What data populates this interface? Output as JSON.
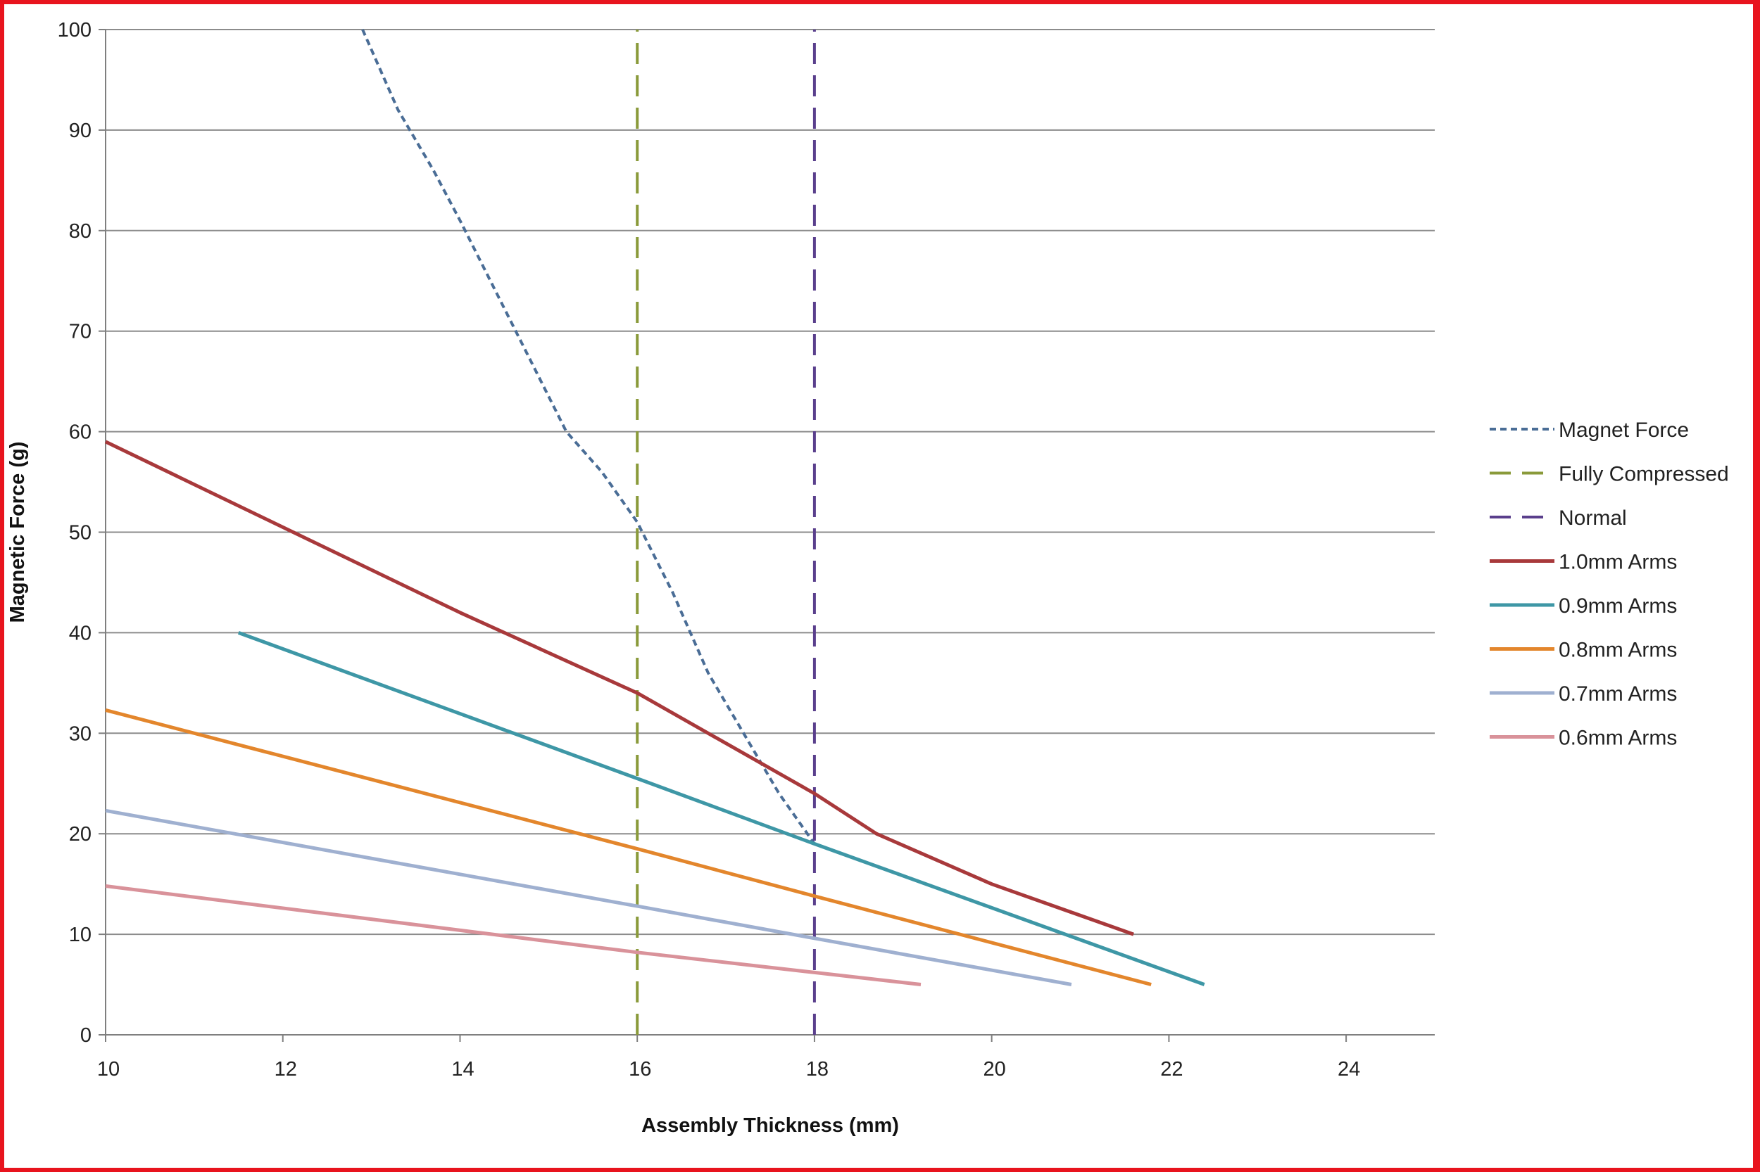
{
  "chart_data": {
    "type": "line",
    "title": "",
    "xlabel": "Assembly Thickness (mm)",
    "ylabel": "Magnetic Force (g)",
    "xlim": [
      10,
      25
    ],
    "ylim": [
      0,
      100
    ],
    "x_ticks": [
      10,
      12,
      14,
      16,
      18,
      20,
      22,
      24
    ],
    "y_ticks": [
      0,
      10,
      20,
      30,
      40,
      50,
      60,
      70,
      80,
      90,
      100
    ],
    "grid": "horizontal",
    "legend_position": "right",
    "series": [
      {
        "name": "Magnet Force",
        "color": "#4a6d96",
        "dash": "dotted",
        "points": [
          [
            12.9,
            100
          ],
          [
            13.3,
            92
          ],
          [
            13.7,
            86
          ],
          [
            14.0,
            81
          ],
          [
            14.4,
            74
          ],
          [
            14.8,
            67
          ],
          [
            15.2,
            60
          ],
          [
            15.6,
            56
          ],
          [
            16.0,
            51
          ],
          [
            16.4,
            44
          ],
          [
            16.8,
            36
          ],
          [
            17.2,
            30
          ],
          [
            17.6,
            24
          ],
          [
            18.0,
            19
          ]
        ]
      },
      {
        "name": "Fully Compressed",
        "color": "#8a9a3a",
        "dash": "dashed",
        "points": [
          [
            16.0,
            0
          ],
          [
            16.0,
            100
          ]
        ]
      },
      {
        "name": "Normal",
        "color": "#5a3f8c",
        "dash": "dashed",
        "points": [
          [
            18.0,
            0
          ],
          [
            18.0,
            100
          ]
        ]
      },
      {
        "name": "1.0mm Arms",
        "color": "#a8393b",
        "dash": "solid",
        "points": [
          [
            10.0,
            59
          ],
          [
            12.0,
            50.5
          ],
          [
            14.0,
            42
          ],
          [
            16.0,
            34
          ],
          [
            17.0,
            29
          ],
          [
            18.0,
            24
          ],
          [
            18.7,
            20
          ],
          [
            20.0,
            15
          ],
          [
            21.6,
            10
          ]
        ]
      },
      {
        "name": "0.9mm Arms",
        "color": "#3e97a6",
        "dash": "solid",
        "points": [
          [
            11.5,
            40
          ],
          [
            16.0,
            25.5
          ],
          [
            18.0,
            19
          ],
          [
            22.4,
            5
          ]
        ]
      },
      {
        "name": "0.8mm Arms",
        "color": "#e3862c",
        "dash": "solid",
        "points": [
          [
            10.0,
            32.3
          ],
          [
            16.0,
            18.5
          ],
          [
            18.0,
            13.8
          ],
          [
            21.8,
            5
          ]
        ]
      },
      {
        "name": "0.7mm Arms",
        "color": "#9fb0d0",
        "dash": "solid",
        "points": [
          [
            10.0,
            22.3
          ],
          [
            16.0,
            12.8
          ],
          [
            18.0,
            9.6
          ],
          [
            20.9,
            5
          ]
        ]
      },
      {
        "name": "0.6mm Arms",
        "color": "#d9929a",
        "dash": "solid",
        "points": [
          [
            10.0,
            14.8
          ],
          [
            16.0,
            8.2
          ],
          [
            18.0,
            6.2
          ],
          [
            19.2,
            5
          ]
        ]
      }
    ]
  }
}
